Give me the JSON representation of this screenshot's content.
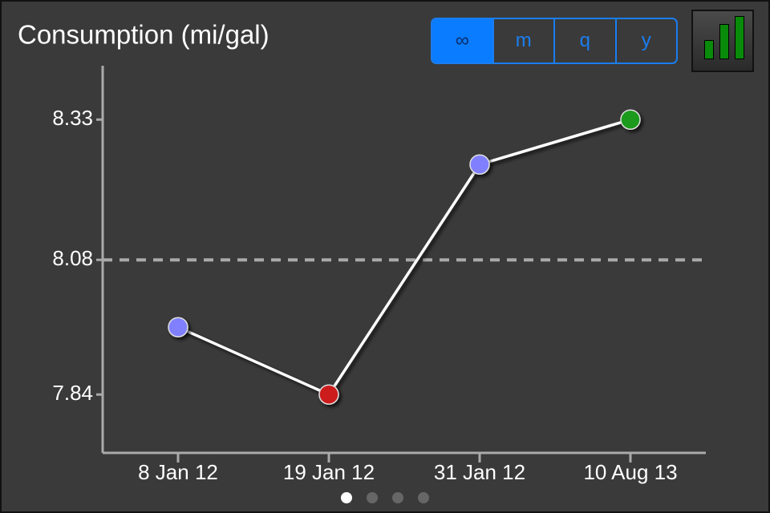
{
  "chart_data": {
    "type": "line",
    "title": "Consumption (mi/gal)",
    "categories": [
      "8 Jan 12",
      "19 Jan 12",
      "31 Jan 12",
      "10 Aug 13"
    ],
    "values": [
      7.96,
      7.84,
      8.25,
      8.33
    ],
    "point_colors": [
      "#8080ff",
      "#cc1f1f",
      "#8080ff",
      "#1e9a1e"
    ],
    "color": "#ffffff",
    "ylim": [
      7.736,
      8.426
    ],
    "yticks": [
      7.84,
      8.08,
      8.33
    ],
    "reference_line": 8.08
  },
  "controls": {
    "segments": [
      "∞",
      "m",
      "q",
      "y"
    ],
    "selected": 0
  },
  "pager": {
    "count": 4,
    "current": 0
  }
}
